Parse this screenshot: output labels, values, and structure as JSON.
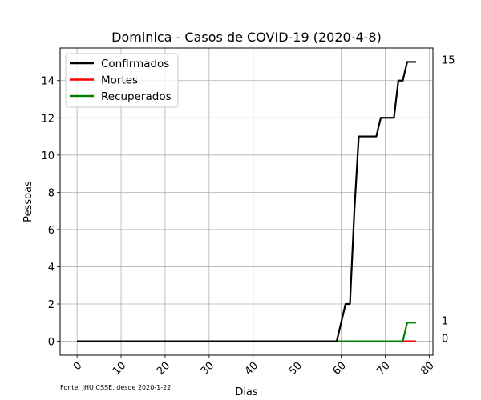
{
  "chart_data": {
    "type": "line",
    "title": "Dominica - Casos de COVID-19 (2020-4-8)",
    "xlabel": "Dias",
    "ylabel": "Pessoas",
    "xlim": [
      -3.85,
      80.85
    ],
    "ylim": [
      -0.75,
      15.75
    ],
    "xticks": [
      0,
      10,
      20,
      30,
      40,
      50,
      60,
      70,
      80
    ],
    "yticks": [
      0,
      2,
      4,
      6,
      8,
      10,
      12,
      14
    ],
    "grid": true,
    "legend_position": "top-left",
    "source_note": "Fonte: JHU CSSE, desde 2020-1-22",
    "series": [
      {
        "name": "Confirmados",
        "color": "#000000",
        "end_label": "15",
        "points": [
          [
            0,
            0
          ],
          [
            59,
            0
          ],
          [
            60,
            1
          ],
          [
            61,
            2
          ],
          [
            62,
            2
          ],
          [
            63,
            7
          ],
          [
            64,
            11
          ],
          [
            65,
            11
          ],
          [
            66,
            11
          ],
          [
            67,
            11
          ],
          [
            68,
            11
          ],
          [
            69,
            12
          ],
          [
            70,
            12
          ],
          [
            71,
            12
          ],
          [
            72,
            12
          ],
          [
            73,
            14
          ],
          [
            74,
            14
          ],
          [
            75,
            15
          ],
          [
            76,
            15
          ],
          [
            77,
            15
          ]
        ]
      },
      {
        "name": "Mortes",
        "color": "#ff0000",
        "end_label": "0",
        "points": [
          [
            0,
            0
          ],
          [
            77,
            0
          ]
        ]
      },
      {
        "name": "Recuperados",
        "color": "#008000",
        "end_label": "1",
        "points": [
          [
            0,
            0
          ],
          [
            74,
            0
          ],
          [
            75,
            1
          ],
          [
            76,
            1
          ],
          [
            77,
            1
          ]
        ]
      }
    ]
  }
}
